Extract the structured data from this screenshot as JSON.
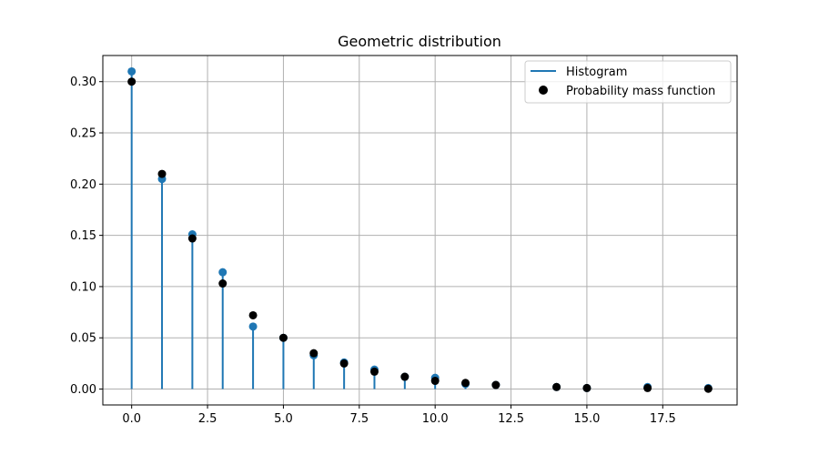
{
  "chart_data": {
    "type": "scatter",
    "title": "Geometric distribution",
    "xlabel": "",
    "ylabel": "",
    "xlim": [
      -0.95,
      19.95
    ],
    "ylim": [
      -0.0155,
      0.3255
    ],
    "grid": true,
    "legend_position": "upper right",
    "x_ticks": [
      "0.0",
      "2.5",
      "5.0",
      "7.5",
      "10.0",
      "12.5",
      "15.0",
      "17.5"
    ],
    "y_ticks": [
      "0.00",
      "0.05",
      "0.10",
      "0.15",
      "0.20",
      "0.25",
      "0.30"
    ],
    "series": [
      {
        "name": "Histogram",
        "kind": "stem",
        "color": "#1f77b4",
        "x": [
          0,
          1,
          2,
          3,
          4,
          5,
          6,
          7,
          8,
          9,
          10,
          11,
          12,
          14,
          15,
          17,
          19
        ],
        "y": [
          0.31,
          0.205,
          0.151,
          0.114,
          0.061,
          0.05,
          0.033,
          0.026,
          0.019,
          0.012,
          0.011,
          0.005,
          0.004,
          0.002,
          0.001,
          0.002,
          0.001
        ]
      },
      {
        "name": "Probability mass function",
        "kind": "scatter",
        "color": "#000000",
        "x": [
          0,
          1,
          2,
          3,
          4,
          5,
          6,
          7,
          8,
          9,
          10,
          11,
          12,
          14,
          15,
          17,
          19
        ],
        "y": [
          0.3,
          0.21,
          0.147,
          0.103,
          0.072,
          0.05,
          0.035,
          0.025,
          0.017,
          0.012,
          0.008,
          0.006,
          0.004,
          0.002,
          0.001,
          0.001,
          0.0003
        ]
      }
    ]
  }
}
